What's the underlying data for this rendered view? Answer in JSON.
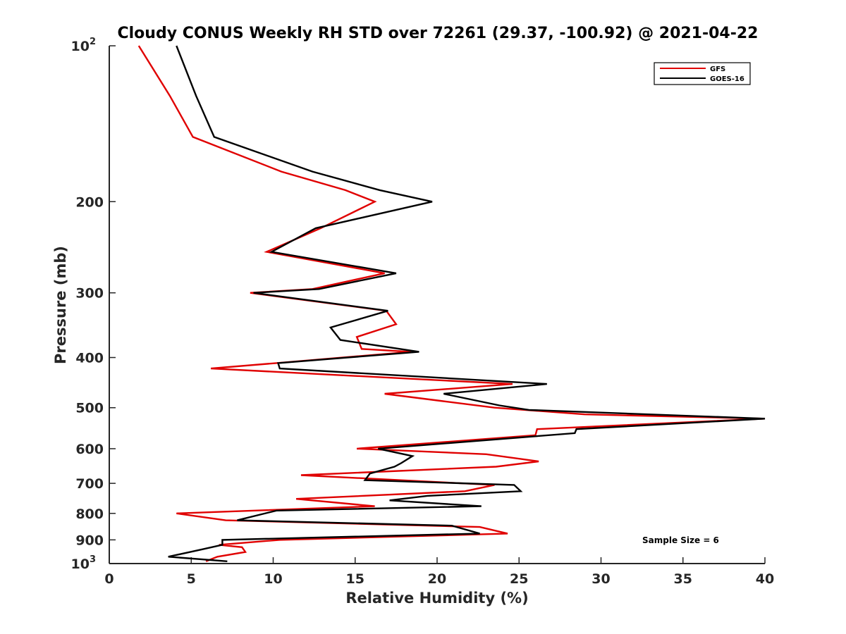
{
  "chart_data": {
    "type": "line",
    "title": "Cloudy CONUS Weekly RH STD over 72261 (29.37, -100.92) @ 2021-04-22",
    "xlabel": "Relative Humidity (%)",
    "ylabel": "Pressure (mb)",
    "xlim": [
      0,
      40
    ],
    "ylim": [
      100,
      1000
    ],
    "y_scale": "log",
    "y_reversed": true,
    "x_ticks": [
      "0",
      "5",
      "10",
      "15",
      "20",
      "25",
      "30",
      "35",
      "40"
    ],
    "y_ticks": [
      "10^2",
      "200",
      "300",
      "400",
      "500",
      "600",
      "700",
      "800",
      "900",
      "10^3"
    ],
    "grid": false,
    "legend_position": "top-right",
    "annotation": "Sample Size = 6",
    "series": [
      {
        "name": "GFS",
        "color": "#e00000",
        "points": [
          [
            1.8,
            100
          ],
          [
            3.7,
            125
          ],
          [
            5.1,
            150
          ],
          [
            10.5,
            175
          ],
          [
            14.4,
            190
          ],
          [
            16.2,
            200
          ],
          [
            12.9,
            225
          ],
          [
            9.6,
            250
          ],
          [
            16.8,
            275
          ],
          [
            12.4,
            295
          ],
          [
            8.6,
            300
          ],
          [
            16.9,
            325
          ],
          [
            17.5,
            345
          ],
          [
            15.1,
            365
          ],
          [
            15.4,
            385
          ],
          [
            18.4,
            390
          ],
          [
            10.2,
            410
          ],
          [
            6.2,
            420
          ],
          [
            24.6,
            450
          ],
          [
            16.8,
            470
          ],
          [
            20.2,
            485
          ],
          [
            23.5,
            500
          ],
          [
            29.0,
            515
          ],
          [
            40.0,
            525
          ],
          [
            26.1,
            550
          ],
          [
            26.0,
            565
          ],
          [
            15.1,
            600
          ],
          [
            23.0,
            615
          ],
          [
            26.2,
            635
          ],
          [
            23.6,
            650
          ],
          [
            11.7,
            675
          ],
          [
            23.5,
            705
          ],
          [
            21.7,
            725
          ],
          [
            11.4,
            750
          ],
          [
            16.2,
            775
          ],
          [
            4.1,
            800
          ],
          [
            7.1,
            825
          ],
          [
            22.6,
            850
          ],
          [
            24.3,
            875
          ],
          [
            10.4,
            900
          ],
          [
            6.7,
            920
          ],
          [
            8.1,
            930
          ],
          [
            8.3,
            950
          ],
          [
            6.6,
            970
          ],
          [
            5.9,
            990
          ]
        ]
      },
      {
        "name": "GOES-16",
        "color": "#000000",
        "points": [
          [
            4.1,
            100
          ],
          [
            5.3,
            125
          ],
          [
            6.4,
            150
          ],
          [
            12.4,
            175
          ],
          [
            16.5,
            190
          ],
          [
            19.7,
            200
          ],
          [
            12.6,
            225
          ],
          [
            9.9,
            250
          ],
          [
            17.5,
            275
          ],
          [
            12.8,
            295
          ],
          [
            8.8,
            300
          ],
          [
            17.0,
            325
          ],
          [
            13.5,
            350
          ],
          [
            14.1,
            370
          ],
          [
            18.9,
            390
          ],
          [
            10.3,
            410
          ],
          [
            10.4,
            420
          ],
          [
            26.7,
            450
          ],
          [
            20.4,
            470
          ],
          [
            23.8,
            495
          ],
          [
            25.6,
            505
          ],
          [
            40.0,
            525
          ],
          [
            28.5,
            550
          ],
          [
            28.4,
            560
          ],
          [
            16.4,
            600
          ],
          [
            18.5,
            620
          ],
          [
            17.8,
            640
          ],
          [
            17.4,
            650
          ],
          [
            15.9,
            670
          ],
          [
            15.6,
            690
          ],
          [
            24.7,
            705
          ],
          [
            25.1,
            725
          ],
          [
            19.4,
            740
          ],
          [
            17.1,
            755
          ],
          [
            22.7,
            775
          ],
          [
            10.2,
            790
          ],
          [
            7.8,
            825
          ],
          [
            20.9,
            845
          ],
          [
            22.6,
            875
          ],
          [
            6.9,
            900
          ],
          [
            6.9,
            920
          ],
          [
            5.6,
            940
          ],
          [
            3.6,
            970
          ],
          [
            7.2,
            990
          ]
        ]
      }
    ]
  }
}
